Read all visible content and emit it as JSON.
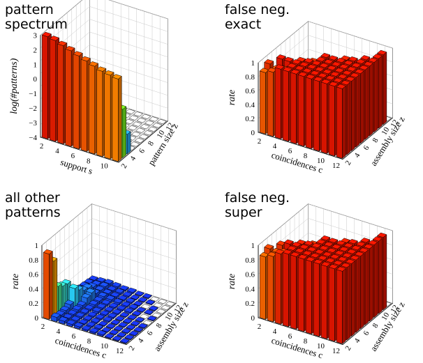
{
  "panels": [
    {
      "id": "pattern-spectrum",
      "title_lines": [
        "pattern",
        "spectrum"
      ],
      "ylabel": "log(#patterns)",
      "xlabel": "support s",
      "zlabel": "pattern size z",
      "zlim": [
        -4,
        3.8
      ],
      "xticks": [
        "2",
        "4",
        "6",
        "8",
        "10"
      ],
      "zticks": [
        "2",
        "4",
        "6",
        "8",
        "10",
        "12"
      ],
      "yticks": [
        "−4",
        "−3",
        "−2",
        "−1",
        "0",
        "1",
        "2",
        "3"
      ]
    },
    {
      "id": "false-neg-exact",
      "title_lines": [
        "false neg.",
        "exact"
      ],
      "ylabel": "rate",
      "xlabel": "coincidences c",
      "zlabel": "assembly size z",
      "zlim": [
        0,
        1
      ],
      "xticks": [
        "2",
        "4",
        "6",
        "8",
        "10",
        "12"
      ],
      "zticks": [
        "2",
        "4",
        "6",
        "8",
        "10",
        "12"
      ],
      "yticks": [
        "0",
        "0.2",
        "0.4",
        "0.6",
        "0.8",
        "1"
      ]
    },
    {
      "id": "all-other-patterns",
      "title_lines": [
        "all other",
        "patterns"
      ],
      "ylabel": "rate",
      "xlabel": "coincidences c",
      "zlabel": "assembly size z",
      "zlim": [
        0,
        1
      ],
      "xticks": [
        "2",
        "4",
        "6",
        "8",
        "10",
        "12"
      ],
      "zticks": [
        "2",
        "4",
        "6",
        "8",
        "10",
        "12"
      ],
      "yticks": [
        "0",
        "0.2",
        "0.4",
        "0.6",
        "0.8",
        "1"
      ]
    },
    {
      "id": "false-neg-super",
      "title_lines": [
        "false neg.",
        "super"
      ],
      "ylabel": "rate",
      "xlabel": "coincidences c",
      "zlabel": "assembly size z",
      "zlim": [
        0,
        1
      ],
      "xticks": [
        "2",
        "4",
        "6",
        "8",
        "10",
        "12"
      ],
      "zticks": [
        "2",
        "4",
        "6",
        "8",
        "10",
        "12"
      ],
      "yticks": [
        "0",
        "0.2",
        "0.4",
        "0.6",
        "0.8",
        "1"
      ]
    }
  ],
  "chart_data": [
    {
      "type": "bar3d",
      "panel": "pattern-spectrum",
      "x_name": "support s",
      "y_name": "pattern size z",
      "value_name": "log(#patterns)",
      "x": [
        2,
        3,
        4,
        5,
        6,
        7,
        8,
        9,
        10,
        11
      ],
      "y": [
        2,
        3,
        4,
        5,
        6,
        7,
        8,
        9,
        10,
        11,
        12
      ],
      "values": [
        [
          3.8,
          3.7,
          3.5,
          3.3,
          3.1,
          2.9,
          2.7,
          2.5,
          2.4,
          2.3
        ],
        [
          3.2,
          2.9,
          2.5,
          2.1,
          1.7,
          1.3,
          0.9,
          0.5,
          0.1,
          -0.3
        ],
        [
          2.6,
          2.0,
          1.4,
          0.8,
          0.2,
          -0.4,
          -1.0,
          -1.5,
          -2.0,
          -2.5
        ],
        [
          2.0,
          1.2,
          0.4,
          -0.4,
          -1.2,
          -2.0,
          -2.7,
          -3.3,
          null,
          null
        ],
        [
          1.4,
          0.5,
          -0.5,
          -1.5,
          -2.5,
          -3.4,
          null,
          null,
          null,
          null
        ],
        [
          0.8,
          -0.3,
          -1.4,
          -2.5,
          -3.5,
          null,
          null,
          null,
          null,
          null
        ],
        [
          0.2,
          -1.0,
          -2.2,
          -3.4,
          null,
          null,
          null,
          null,
          null,
          null
        ],
        [
          -0.5,
          -1.8,
          -3.0,
          null,
          null,
          null,
          null,
          null,
          null,
          null
        ],
        [
          -1.2,
          -2.6,
          null,
          null,
          null,
          null,
          null,
          null,
          null,
          null
        ],
        [
          -1.9,
          -3.3,
          null,
          null,
          null,
          null,
          null,
          null,
          null,
          null
        ],
        [
          -2.6,
          null,
          null,
          null,
          null,
          null,
          null,
          null,
          null,
          null
        ]
      ],
      "floor": -4
    },
    {
      "type": "bar3d",
      "panel": "false-neg-exact",
      "x_name": "coincidences c",
      "y_name": "assembly size z",
      "value_name": "rate",
      "x": [
        2,
        3,
        4,
        5,
        6,
        7,
        8,
        9,
        10,
        11,
        12
      ],
      "y": [
        2,
        3,
        4,
        5,
        6,
        7,
        8,
        9,
        10,
        11,
        12
      ],
      "values": [
        [
          0.88,
          0.92,
          1,
          1,
          1,
          1,
          1,
          1,
          1,
          1,
          1
        ],
        [
          0.95,
          0.9,
          0.93,
          1,
          1,
          1,
          1,
          1,
          1,
          1,
          1
        ],
        [
          0.06,
          1,
          1,
          1,
          1,
          1,
          1,
          1,
          1,
          1,
          1
        ],
        [
          0.04,
          0.04,
          0.72,
          0.98,
          1,
          1,
          1,
          1,
          1,
          1,
          1
        ],
        [
          0.04,
          0.05,
          0.04,
          0.85,
          0.95,
          1,
          1,
          1,
          1,
          1,
          1
        ],
        [
          0.05,
          0.04,
          0.03,
          0.04,
          0.03,
          1,
          1,
          1,
          1,
          1,
          1
        ],
        [
          0.04,
          0.05,
          0.03,
          0.04,
          0.03,
          0,
          0.04,
          0.98,
          1,
          1,
          1
        ],
        [
          0.03,
          0.04,
          0.03,
          0.03,
          0.03,
          0.02,
          0.02,
          0.02,
          0.72,
          1,
          1
        ],
        [
          0.03,
          0.03,
          0.02,
          0,
          0,
          0.03,
          0,
          0.02,
          0,
          0.02,
          1
        ],
        [
          0.04,
          0.02,
          0,
          0.02,
          0.03,
          0,
          0.03,
          0,
          0,
          0,
          1
        ],
        [
          0.02,
          0.04,
          0.03,
          0,
          0.02,
          0,
          0,
          0.02,
          0,
          0,
          0
        ]
      ]
    },
    {
      "type": "bar3d",
      "panel": "all-other-patterns",
      "x_name": "coincidences c",
      "y_name": "assembly size z",
      "value_name": "rate",
      "x": [
        2,
        3,
        4,
        5,
        6,
        7,
        8,
        9,
        10,
        11,
        12
      ],
      "y": [
        2,
        3,
        4,
        5,
        6,
        7,
        8,
        9,
        10,
        11,
        12
      ],
      "values": [
        [
          0.9,
          0.06,
          0.04,
          0.03,
          0.03,
          0.02,
          0.02,
          0.02,
          0.01,
          0.01,
          0.01
        ],
        [
          0.75,
          0.04,
          0.03,
          0.03,
          0.02,
          0.02,
          0.02,
          0.01,
          0.01,
          0.01,
          0.01
        ],
        [
          0.35,
          0.05,
          0.03,
          0.03,
          0.02,
          0.02,
          0.01,
          0.01,
          0.01,
          0.01,
          0.01
        ],
        [
          0.3,
          0.08,
          0.04,
          0.03,
          0.02,
          0.02,
          0.02,
          0.01,
          0.01,
          0.01,
          0.01
        ],
        [
          0.28,
          0.25,
          0.05,
          0.03,
          0.03,
          0.02,
          0.02,
          0.01,
          0.01,
          0.01,
          0.01
        ],
        [
          0.15,
          0.18,
          0.1,
          0.04,
          0.03,
          0.02,
          0.02,
          0.01,
          0.01,
          0.01,
          0
        ],
        [
          0.08,
          0.12,
          0.12,
          0.04,
          0.03,
          0.02,
          0.02,
          0.02,
          0.01,
          0,
          0.01
        ],
        [
          0.05,
          0.1,
          0.06,
          0.05,
          0.04,
          0.03,
          0.02,
          0.02,
          0.01,
          0.01,
          0
        ],
        [
          0.04,
          0.06,
          0.05,
          0.04,
          0.03,
          0.02,
          0.02,
          0.01,
          0,
          0.01,
          0
        ],
        [
          0.03,
          0.04,
          0.05,
          0.03,
          0.03,
          0.02,
          0.01,
          0.01,
          0.01,
          0,
          0
        ],
        [
          0.02,
          0.03,
          0.04,
          0.03,
          0.02,
          0.02,
          0.01,
          0.01,
          0,
          0,
          0
        ]
      ]
    },
    {
      "type": "bar3d",
      "panel": "false-neg-super",
      "x_name": "coincidences c",
      "y_name": "assembly size z",
      "value_name": "rate",
      "x": [
        2,
        3,
        4,
        5,
        6,
        7,
        8,
        9,
        10,
        11,
        12
      ],
      "y": [
        2,
        3,
        4,
        5,
        6,
        7,
        8,
        9,
        10,
        11,
        12
      ],
      "values": [
        [
          0.86,
          0.9,
          0.97,
          1,
          1,
          1,
          1,
          1,
          1,
          1,
          1
        ],
        [
          0.92,
          0.9,
          0.93,
          1,
          1,
          1,
          1,
          1,
          1,
          1,
          1
        ],
        [
          0.06,
          0.95,
          1,
          1,
          1,
          1,
          1,
          1,
          1,
          1,
          1
        ],
        [
          0.04,
          0.06,
          0.72,
          0.98,
          1,
          1,
          1,
          1,
          1,
          1,
          1
        ],
        [
          0.04,
          0.04,
          0.05,
          0.7,
          0.95,
          1,
          1,
          1,
          1,
          1,
          1
        ],
        [
          0.05,
          0.04,
          0.03,
          0.04,
          0.03,
          1,
          1,
          1,
          1,
          1,
          1
        ],
        [
          0.04,
          0.04,
          0.03,
          0.04,
          0.03,
          0,
          0.04,
          0.98,
          1,
          1,
          1
        ],
        [
          0.03,
          0.04,
          0.03,
          0.03,
          0.03,
          0.02,
          0.02,
          0.02,
          0.72,
          1,
          1
        ],
        [
          0.03,
          0.03,
          0.02,
          0,
          0,
          0.03,
          0,
          0.02,
          0,
          0.02,
          1
        ],
        [
          0.04,
          0.02,
          0,
          0.02,
          0.03,
          0,
          0.03,
          0,
          0,
          0,
          1
        ],
        [
          0.02,
          0.04,
          0.03,
          0,
          0.02,
          0,
          0,
          0.02,
          0,
          0,
          0
        ]
      ]
    }
  ]
}
